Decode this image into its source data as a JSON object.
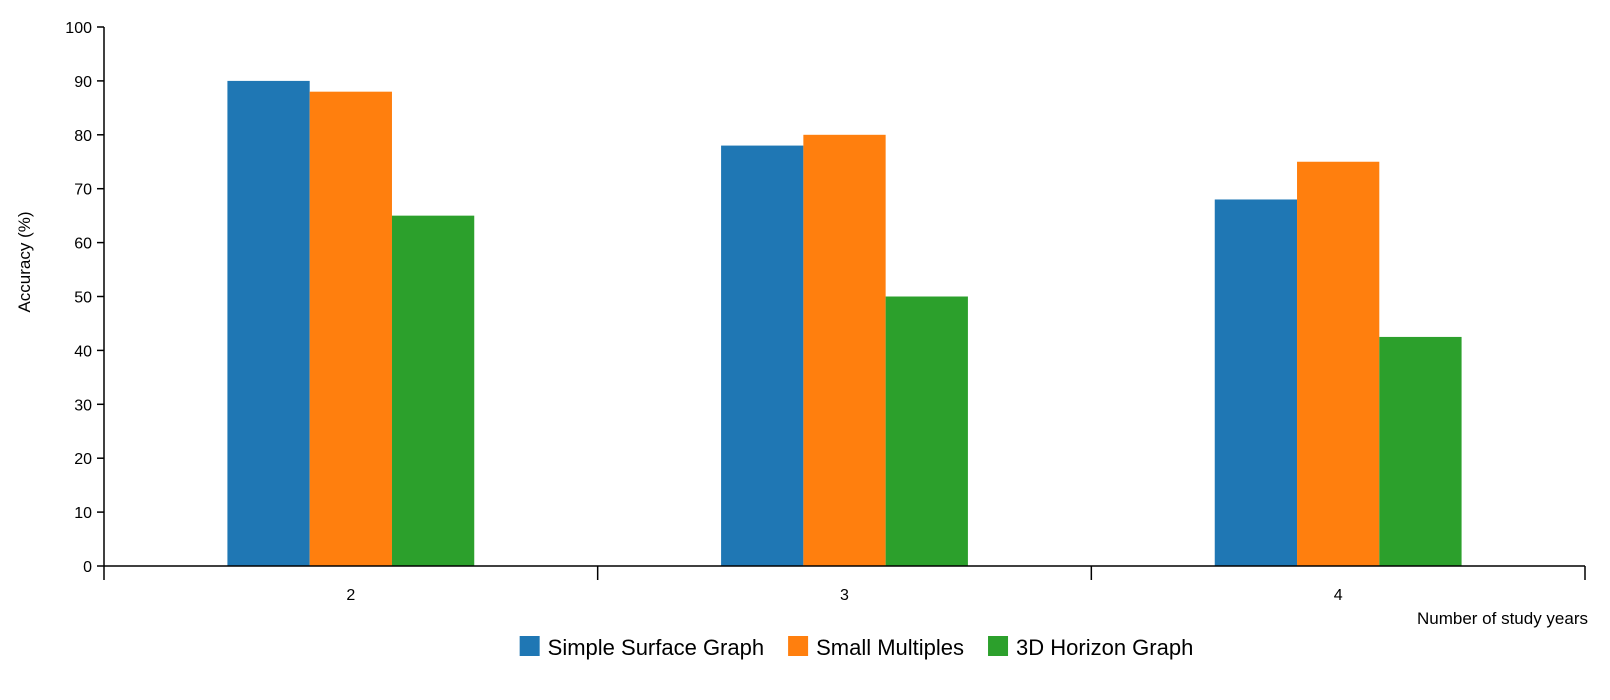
{
  "chart_data": {
    "type": "bar",
    "categories": [
      "2",
      "3",
      "4"
    ],
    "series": [
      {
        "name": "Simple Surface Graph",
        "values": [
          90,
          78,
          68
        ],
        "color": "#1f77b4"
      },
      {
        "name": "Small Multiples",
        "values": [
          88,
          80,
          75
        ],
        "color": "#ff7f0e"
      },
      {
        "name": "3D Horizon Graph",
        "values": [
          65,
          50,
          42.5
        ],
        "color": "#2ca02c"
      }
    ],
    "title": "",
    "xlabel": "Number of study years",
    "ylabel": "Accuracy (%)",
    "ylim": [
      0,
      100
    ],
    "yticks": [
      0,
      10,
      20,
      30,
      40,
      50,
      60,
      70,
      80,
      90,
      100
    ],
    "grid": false,
    "legend_position": "bottom-center"
  }
}
